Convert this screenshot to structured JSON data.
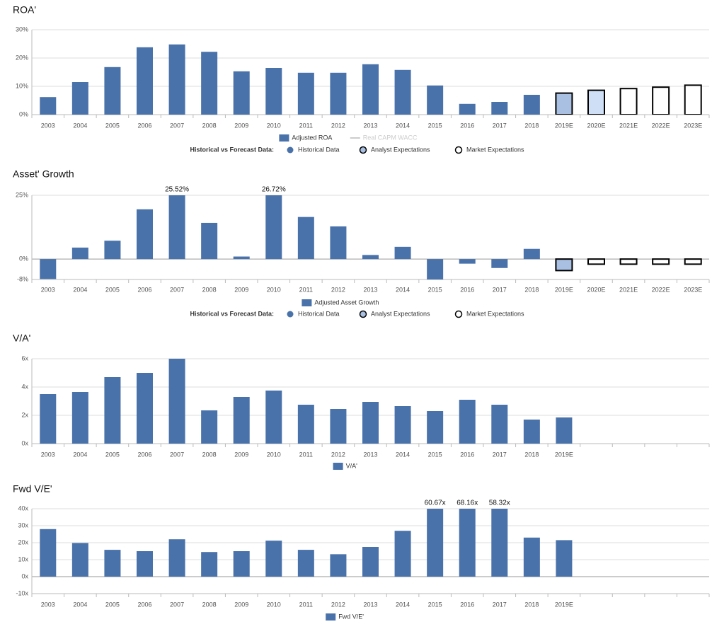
{
  "chart_data": [
    {
      "type": "bar",
      "title": "ROA'",
      "categories": [
        "2003",
        "2004",
        "2005",
        "2006",
        "2007",
        "2008",
        "2009",
        "2010",
        "2011",
        "2012",
        "2013",
        "2014",
        "2015",
        "2016",
        "2017",
        "2018",
        "2019E",
        "2020E",
        "2021E",
        "2022E",
        "2023E"
      ],
      "series": [
        {
          "name": "Adjusted ROA",
          "color": "#4a72aa",
          "values": [
            6.2,
            11.5,
            16.8,
            23.8,
            24.8,
            22.2,
            15.3,
            16.5,
            14.8,
            14.8,
            17.8,
            15.8,
            10.3,
            3.8,
            4.5,
            7.0,
            7.6,
            8.6,
            9.2,
            9.7,
            10.4
          ],
          "colors": [
            "#4a72aa",
            "#4a72aa",
            "#4a72aa",
            "#4a72aa",
            "#4a72aa",
            "#4a72aa",
            "#4a72aa",
            "#4a72aa",
            "#4a72aa",
            "#4a72aa",
            "#4a72aa",
            "#4a72aa",
            "#4a72aa",
            "#4a72aa",
            "#4a72aa",
            "#4a72aa",
            "#a9c0e2",
            "#cfe0f6",
            "#ffffff",
            "#ffffff",
            "#ffffff"
          ],
          "edgecolors": [
            null,
            null,
            null,
            null,
            null,
            null,
            null,
            null,
            null,
            null,
            null,
            null,
            null,
            null,
            null,
            null,
            "#000000",
            "#000000",
            "#000000",
            "#000000",
            "#000000"
          ]
        },
        {
          "name": "Real CAPM WACC",
          "type": "line",
          "color": "#cccccc",
          "values": [
            null,
            null,
            null,
            null,
            null,
            null,
            null,
            null,
            null,
            null,
            null,
            null,
            null,
            null,
            null,
            null,
            null,
            null,
            null,
            null,
            null
          ]
        }
      ],
      "ylim": [
        0,
        30
      ],
      "yticks": [
        {
          "value": 0,
          "label": "0%"
        },
        {
          "value": 10,
          "label": "10%"
        },
        {
          "value": 20,
          "label": "20%"
        },
        {
          "value": 30,
          "label": "30%"
        }
      ],
      "grid": true,
      "forecast_legend": {
        "title": "Historical vs Forecast Data:",
        "items": [
          {
            "label": "Historical Data",
            "color": "#4a72aa"
          },
          {
            "label": "Analyst Expectations",
            "color": "#a9c0e2"
          },
          {
            "label": "Market Expectations",
            "color": "#ffffff"
          }
        ]
      }
    },
    {
      "type": "bar",
      "title": "Asset' Growth",
      "categories": [
        "2003",
        "2004",
        "2005",
        "2006",
        "2007",
        "2008",
        "2009",
        "2010",
        "2011",
        "2012",
        "2013",
        "2014",
        "2015",
        "2016",
        "2017",
        "2018",
        "2019E",
        "2020E",
        "2021E",
        "2022E",
        "2023E"
      ],
      "series": [
        {
          "name": "Adjusted Asset Growth",
          "color": "#4a72aa",
          "values": [
            -7.8,
            4.5,
            7.2,
            19.5,
            25.52,
            14.2,
            1.0,
            26.72,
            16.5,
            12.8,
            1.6,
            4.8,
            -8.5,
            -1.8,
            -3.5,
            4.0,
            -4.5,
            -2.0,
            -2.0,
            -2.0,
            -2.0
          ],
          "value_labels": [
            null,
            null,
            null,
            null,
            "25.52%",
            null,
            null,
            "26.72%",
            null,
            null,
            null,
            null,
            null,
            null,
            null,
            null,
            null,
            null,
            null,
            null,
            null
          ],
          "colors": [
            "#4a72aa",
            "#4a72aa",
            "#4a72aa",
            "#4a72aa",
            "#4a72aa",
            "#4a72aa",
            "#4a72aa",
            "#4a72aa",
            "#4a72aa",
            "#4a72aa",
            "#4a72aa",
            "#4a72aa",
            "#4a72aa",
            "#4a72aa",
            "#4a72aa",
            "#4a72aa",
            "#a9c0e2",
            "#ffffff",
            "#ffffff",
            "#ffffff",
            "#ffffff"
          ],
          "edgecolors": [
            null,
            null,
            null,
            null,
            null,
            null,
            null,
            null,
            null,
            null,
            null,
            null,
            null,
            null,
            null,
            null,
            "#000000",
            "#000000",
            "#000000",
            "#000000",
            "#000000"
          ]
        }
      ],
      "ylim": [
        -8,
        25
      ],
      "yticks": [
        {
          "value": -8,
          "label": "-8%"
        },
        {
          "value": 0,
          "label": "0%"
        },
        {
          "value": 25,
          "label": "25%"
        }
      ],
      "grid": true,
      "forecast_legend": {
        "title": "Historical vs Forecast Data:",
        "items": [
          {
            "label": "Historical Data",
            "color": "#4a72aa"
          },
          {
            "label": "Analyst Expectations",
            "color": "#a9c0e2"
          },
          {
            "label": "Market Expectations",
            "color": "#ffffff"
          }
        ]
      }
    },
    {
      "type": "bar",
      "title": "V/A'",
      "categories": [
        "2003",
        "2004",
        "2005",
        "2006",
        "2007",
        "2008",
        "2009",
        "2010",
        "2011",
        "2012",
        "2013",
        "2014",
        "2015",
        "2016",
        "2017",
        "2018",
        "2019E",
        null,
        null,
        null,
        null
      ],
      "series": [
        {
          "name": "V/A'",
          "color": "#4a72aa",
          "values": [
            3.5,
            3.65,
            4.7,
            5.0,
            6.0,
            2.35,
            3.3,
            3.75,
            2.75,
            2.45,
            2.95,
            2.65,
            2.3,
            3.1,
            2.75,
            1.7,
            1.85,
            null,
            null,
            null,
            null
          ]
        }
      ],
      "ylim": [
        0,
        6
      ],
      "yticks": [
        {
          "value": 0,
          "label": "0x"
        },
        {
          "value": 2,
          "label": "2x"
        },
        {
          "value": 4,
          "label": "4x"
        },
        {
          "value": 6,
          "label": "6x"
        }
      ],
      "grid": true
    },
    {
      "type": "bar",
      "title": "Fwd V/E'",
      "categories": [
        "2003",
        "2004",
        "2005",
        "2006",
        "2007",
        "2008",
        "2009",
        "2010",
        "2011",
        "2012",
        "2013",
        "2014",
        "2015",
        "2016",
        "2017",
        "2018",
        "2019E",
        null,
        null,
        null,
        null
      ],
      "series": [
        {
          "name": "Fwd V/E'",
          "color": "#4a72aa",
          "values": [
            28,
            19.8,
            15.8,
            15,
            22,
            14.5,
            15,
            21.2,
            15.8,
            13.2,
            17.5,
            27,
            60.67,
            68.16,
            58.32,
            23,
            21.5,
            null,
            null,
            null,
            null
          ],
          "value_labels": [
            null,
            null,
            null,
            null,
            null,
            null,
            null,
            null,
            null,
            null,
            null,
            null,
            "60.67x",
            "68.16x",
            "58.32x",
            null,
            null,
            null,
            null,
            null,
            null
          ]
        }
      ],
      "ylim": [
        -10,
        40
      ],
      "yticks": [
        {
          "value": -10,
          "label": "-10x"
        },
        {
          "value": 0,
          "label": "0x"
        },
        {
          "value": 10,
          "label": "10x"
        },
        {
          "value": 20,
          "label": "20x"
        },
        {
          "value": 30,
          "label": "30x"
        },
        {
          "value": 40,
          "label": "40x"
        }
      ],
      "grid": true
    }
  ]
}
